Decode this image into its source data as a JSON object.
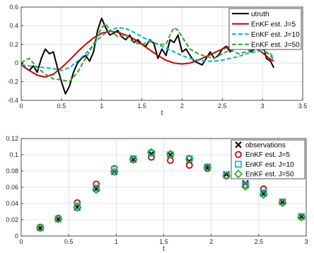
{
  "chart_data": [
    {
      "type": "line",
      "xlabel": "t",
      "ylabel": "",
      "xlim": [
        0,
        3.5
      ],
      "ylim": [
        -0.4,
        0.6
      ],
      "xticks": [
        "0",
        "0.5",
        "1",
        "1.5",
        "2",
        "2.5",
        "3",
        "3.5"
      ],
      "yticks": [
        "-0.4",
        "-0.2",
        "0",
        "0.2",
        "0.4",
        "0.6"
      ],
      "grid": true,
      "legend_position": "top-right",
      "series": [
        {
          "name": "utruth",
          "color": "#000000",
          "style": "solid",
          "width": 2,
          "x": [
            0,
            0.05,
            0.1,
            0.15,
            0.2,
            0.25,
            0.3,
            0.35,
            0.4,
            0.45,
            0.5,
            0.55,
            0.6,
            0.65,
            0.7,
            0.75,
            0.8,
            0.85,
            0.9,
            0.95,
            1.0,
            1.05,
            1.1,
            1.15,
            1.2,
            1.25,
            1.3,
            1.35,
            1.4,
            1.45,
            1.5,
            1.55,
            1.6,
            1.65,
            1.7,
            1.75,
            1.8,
            1.85,
            1.9,
            1.95,
            2.0,
            2.05,
            2.1,
            2.15,
            2.2,
            2.25,
            2.3,
            2.35,
            2.4,
            2.45,
            2.5,
            2.55,
            2.6,
            2.65,
            2.7,
            2.75,
            2.8,
            2.85,
            2.9,
            2.95,
            3.0,
            3.05,
            3.1,
            3.14
          ],
          "y": [
            0.0,
            -0.05,
            -0.08,
            -0.03,
            -0.1,
            0.05,
            0.15,
            0.1,
            0.12,
            -0.05,
            -0.2,
            -0.33,
            -0.25,
            -0.1,
            0.0,
            0.05,
            0.08,
            0.02,
            0.12,
            0.35,
            0.48,
            0.38,
            0.3,
            0.32,
            0.35,
            0.28,
            0.25,
            0.3,
            0.22,
            0.25,
            0.2,
            0.18,
            0.25,
            0.21,
            0.05,
            0.15,
            0.08,
            0.25,
            0.22,
            0.3,
            0.12,
            0.15,
            0.08,
            0.02,
            0.0,
            -0.02,
            0.05,
            0.12,
            0.05,
            0.08,
            0.15,
            0.18,
            0.12,
            0.18,
            0.25,
            0.28,
            0.22,
            0.12,
            0.15,
            0.25,
            0.22,
            0.05,
            0.02,
            -0.05
          ]
        },
        {
          "name": "EnKF est. J=5",
          "color": "#cc0000",
          "style": "solid",
          "width": 2,
          "x": [
            0,
            0.1,
            0.2,
            0.3,
            0.4,
            0.5,
            0.6,
            0.7,
            0.8,
            0.9,
            1.0,
            1.1,
            1.2,
            1.3,
            1.4,
            1.5,
            1.6,
            1.7,
            1.8,
            1.9,
            2.0,
            2.1,
            2.2,
            2.3,
            2.4,
            2.5,
            2.6,
            2.7,
            2.8,
            2.9,
            3.0,
            3.1,
            3.14
          ],
          "y": [
            -0.02,
            -0.08,
            -0.13,
            -0.15,
            -0.12,
            -0.05,
            0.03,
            0.12,
            0.2,
            0.27,
            0.32,
            0.34,
            0.33,
            0.3,
            0.26,
            0.2,
            0.14,
            0.08,
            0.03,
            0.0,
            -0.01,
            0.0,
            0.03,
            0.07,
            0.11,
            0.15,
            0.18,
            0.2,
            0.2,
            0.17,
            0.11,
            0.04,
            0.02
          ]
        },
        {
          "name": "EnKF est. J=10",
          "color": "#00b4cc",
          "style": "dashed",
          "width": 2,
          "x": [
            0,
            0.1,
            0.2,
            0.3,
            0.4,
            0.5,
            0.6,
            0.7,
            0.8,
            0.9,
            1.0,
            1.1,
            1.2,
            1.3,
            1.4,
            1.5,
            1.6,
            1.7,
            1.8,
            1.9,
            2.0,
            2.1,
            2.2,
            2.3,
            2.4,
            2.5,
            2.6,
            2.7,
            2.8,
            2.9,
            3.0,
            3.1,
            3.14
          ],
          "y": [
            -0.02,
            -0.03,
            -0.04,
            -0.05,
            -0.06,
            -0.08,
            -0.05,
            0.02,
            0.1,
            0.2,
            0.29,
            0.35,
            0.38,
            0.37,
            0.33,
            0.28,
            0.24,
            0.2,
            0.16,
            0.12,
            0.08,
            0.05,
            0.03,
            0.02,
            0.02,
            0.03,
            0.05,
            0.07,
            0.1,
            0.12,
            0.13,
            0.1,
            0.05
          ]
        },
        {
          "name": "EnKF est. J=50",
          "color": "#33a02c",
          "style": "dashed",
          "width": 2,
          "x": [
            0,
            0.05,
            0.1,
            0.2,
            0.3,
            0.4,
            0.5,
            0.6,
            0.7,
            0.8,
            0.9,
            1.0,
            1.05,
            1.1,
            1.2,
            1.3,
            1.4,
            1.5,
            1.6,
            1.7,
            1.8,
            1.85,
            1.9,
            1.95,
            2.0,
            2.1,
            2.2,
            2.3,
            2.4,
            2.5,
            2.6,
            2.7,
            2.8,
            2.9,
            3.0,
            3.1,
            3.14
          ],
          "y": [
            0.0,
            0.03,
            0.05,
            -0.05,
            -0.12,
            -0.17,
            -0.18,
            -0.2,
            -0.1,
            0.05,
            0.2,
            0.38,
            0.42,
            0.36,
            0.28,
            0.3,
            0.22,
            0.2,
            0.23,
            0.2,
            0.2,
            0.3,
            0.38,
            0.35,
            0.28,
            0.15,
            0.1,
            0.07,
            0.05,
            0.1,
            0.14,
            0.1,
            0.12,
            0.15,
            0.15,
            0.08,
            0.03
          ]
        }
      ]
    },
    {
      "type": "scatter",
      "xlabel": "t",
      "ylabel": "",
      "xlim": [
        0,
        3
      ],
      "ylim": [
        0,
        0.12
      ],
      "xticks": [
        "0",
        "0.5",
        "1",
        "1.5",
        "2",
        "2.5",
        "3"
      ],
      "yticks": [
        "0",
        "0.02",
        "0.04",
        "0.06",
        "0.08",
        "0.1",
        "0.12"
      ],
      "grid": true,
      "legend_position": "top-right",
      "series": [
        {
          "name": "observations",
          "color": "#000000",
          "marker": "x",
          "x": [
            0.2,
            0.39,
            0.59,
            0.79,
            0.98,
            1.18,
            1.37,
            1.57,
            1.77,
            1.96,
            2.16,
            2.36,
            2.55,
            2.75,
            2.95
          ],
          "y": [
            0.01,
            0.021,
            0.035,
            0.058,
            0.079,
            0.094,
            0.101,
            0.1,
            0.092,
            0.084,
            0.076,
            0.065,
            0.052,
            0.042,
            0.024
          ]
        },
        {
          "name": "EnKF est. J=5",
          "color": "#cc0000",
          "marker": "o",
          "x": [
            0.2,
            0.39,
            0.59,
            0.79,
            0.98,
            1.18,
            1.37,
            1.57,
            1.77,
            1.96,
            2.16,
            2.36,
            2.55,
            2.75,
            2.95
          ],
          "y": [
            0.011,
            0.022,
            0.041,
            0.064,
            0.083,
            0.095,
            0.097,
            0.093,
            0.087,
            0.083,
            0.074,
            0.063,
            0.058,
            0.042,
            0.024
          ]
        },
        {
          "name": "EnKF est. J=10",
          "color": "#00b4cc",
          "marker": "square",
          "x": [
            0.2,
            0.39,
            0.59,
            0.79,
            0.98,
            1.18,
            1.37,
            1.57,
            1.77,
            1.96,
            2.16,
            2.36,
            2.55,
            2.75,
            2.95
          ],
          "y": [
            0.01,
            0.021,
            0.037,
            0.059,
            0.082,
            0.095,
            0.102,
            0.1,
            0.095,
            0.085,
            0.075,
            0.063,
            0.053,
            0.042,
            0.024
          ]
        },
        {
          "name": "EnKF est. J=50",
          "color": "#33a02c",
          "marker": "diamond",
          "x": [
            0.2,
            0.39,
            0.59,
            0.79,
            0.98,
            1.18,
            1.37,
            1.57,
            1.77,
            1.96,
            2.16,
            2.36,
            2.55,
            2.75,
            2.95
          ],
          "y": [
            0.01,
            0.021,
            0.035,
            0.057,
            0.079,
            0.094,
            0.103,
            0.101,
            0.095,
            0.084,
            0.074,
            0.061,
            0.051,
            0.041,
            0.023
          ]
        }
      ]
    }
  ]
}
